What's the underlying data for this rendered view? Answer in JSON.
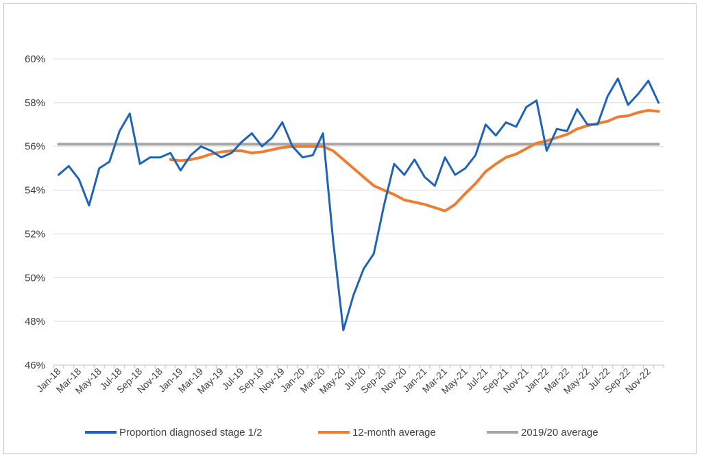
{
  "chart_data": {
    "type": "line",
    "title": "",
    "xlabel": "",
    "ylabel": "",
    "ylim": [
      46,
      60
    ],
    "y_ticks": [
      "46%",
      "48%",
      "50%",
      "52%",
      "54%",
      "56%",
      "58%",
      "60%"
    ],
    "grid": "horizontal",
    "legend_position": "bottom",
    "x": [
      "Jan-18",
      "Feb-18",
      "Mar-18",
      "Apr-18",
      "May-18",
      "Jun-18",
      "Jul-18",
      "Aug-18",
      "Sep-18",
      "Oct-18",
      "Nov-18",
      "Dec-18",
      "Jan-19",
      "Feb-19",
      "Mar-19",
      "Apr-19",
      "May-19",
      "Jun-19",
      "Jul-19",
      "Aug-19",
      "Sep-19",
      "Oct-19",
      "Nov-19",
      "Dec-19",
      "Jan-20",
      "Feb-20",
      "Mar-20",
      "Apr-20",
      "May-20",
      "Jun-20",
      "Jul-20",
      "Aug-20",
      "Sep-20",
      "Oct-20",
      "Nov-20",
      "Dec-20",
      "Jan-21",
      "Feb-21",
      "Mar-21",
      "Apr-21",
      "May-21",
      "Jun-21",
      "Jul-21",
      "Aug-21",
      "Sep-21",
      "Oct-21",
      "Nov-21",
      "Dec-21",
      "Jan-22",
      "Feb-22",
      "Mar-22",
      "Apr-22",
      "May-22",
      "Jun-22",
      "Jul-22",
      "Aug-22",
      "Sep-22",
      "Oct-22",
      "Nov-22",
      "Dec-22"
    ],
    "x_tick_labels": [
      "Jan-18",
      "Mar-18",
      "May-18",
      "Jul-18",
      "Sep-18",
      "Nov-18",
      "Jan-19",
      "Mar-19",
      "May-19",
      "Jul-19",
      "Sep-19",
      "Nov-19",
      "Jan-20",
      "Mar-20",
      "May-20",
      "Jul-20",
      "Sep-20",
      "Nov-20",
      "Jan-21",
      "Mar-21",
      "May-21",
      "Jul-21",
      "Sep-21",
      "Nov-21",
      "Jan-22",
      "Mar-22",
      "May-22",
      "Jul-22",
      "Sep-22",
      "Nov-22"
    ],
    "series": [
      {
        "name": "Proportion diagnosed stage 1/2",
        "color": "#1f63b8",
        "values": [
          54.7,
          55.1,
          54.5,
          53.3,
          55.0,
          55.3,
          56.7,
          57.5,
          55.2,
          55.5,
          55.5,
          55.7,
          54.9,
          55.6,
          56.0,
          55.8,
          55.5,
          55.7,
          56.2,
          56.6,
          56.0,
          56.4,
          57.1,
          56.0,
          55.5,
          55.6,
          56.6,
          51.7,
          47.6,
          49.2,
          50.4,
          51.1,
          53.3,
          55.2,
          54.7,
          55.4,
          54.6,
          54.2,
          55.5,
          54.7,
          55.0,
          55.6,
          57.0,
          56.5,
          57.1,
          56.9,
          57.8,
          58.1,
          55.8,
          56.8,
          56.7,
          57.7,
          57.0,
          57.0,
          58.3,
          59.1,
          57.9,
          58.4,
          59.0,
          58.0
        ]
      },
      {
        "name": "12-month average",
        "color": "#ed7d31",
        "values": [
          null,
          null,
          null,
          null,
          null,
          null,
          null,
          null,
          null,
          null,
          null,
          55.4,
          55.35,
          55.4,
          55.5,
          55.65,
          55.75,
          55.8,
          55.8,
          55.7,
          55.75,
          55.85,
          55.95,
          56.0,
          56.0,
          56.0,
          56.0,
          55.8,
          55.4,
          55.0,
          54.6,
          54.2,
          54.0,
          53.8,
          53.55,
          53.45,
          53.35,
          53.2,
          53.05,
          53.35,
          53.85,
          54.3,
          54.85,
          55.2,
          55.5,
          55.65,
          55.9,
          56.15,
          56.25,
          56.4,
          56.55,
          56.8,
          56.95,
          57.05,
          57.15,
          57.35,
          57.4,
          57.55,
          57.65,
          57.6
        ]
      },
      {
        "name": "2019/20 average",
        "color": "#a6a6a6",
        "values": [
          56.1,
          56.1,
          56.1,
          56.1,
          56.1,
          56.1,
          56.1,
          56.1,
          56.1,
          56.1,
          56.1,
          56.1,
          56.1,
          56.1,
          56.1,
          56.1,
          56.1,
          56.1,
          56.1,
          56.1,
          56.1,
          56.1,
          56.1,
          56.1,
          56.1,
          56.1,
          56.1,
          56.1,
          56.1,
          56.1,
          56.1,
          56.1,
          56.1,
          56.1,
          56.1,
          56.1,
          56.1,
          56.1,
          56.1,
          56.1,
          56.1,
          56.1,
          56.1,
          56.1,
          56.1,
          56.1,
          56.1,
          56.1,
          56.1,
          56.1,
          56.1,
          56.1,
          56.1,
          56.1,
          56.1,
          56.1,
          56.1,
          56.1,
          56.1,
          56.1
        ]
      }
    ]
  }
}
